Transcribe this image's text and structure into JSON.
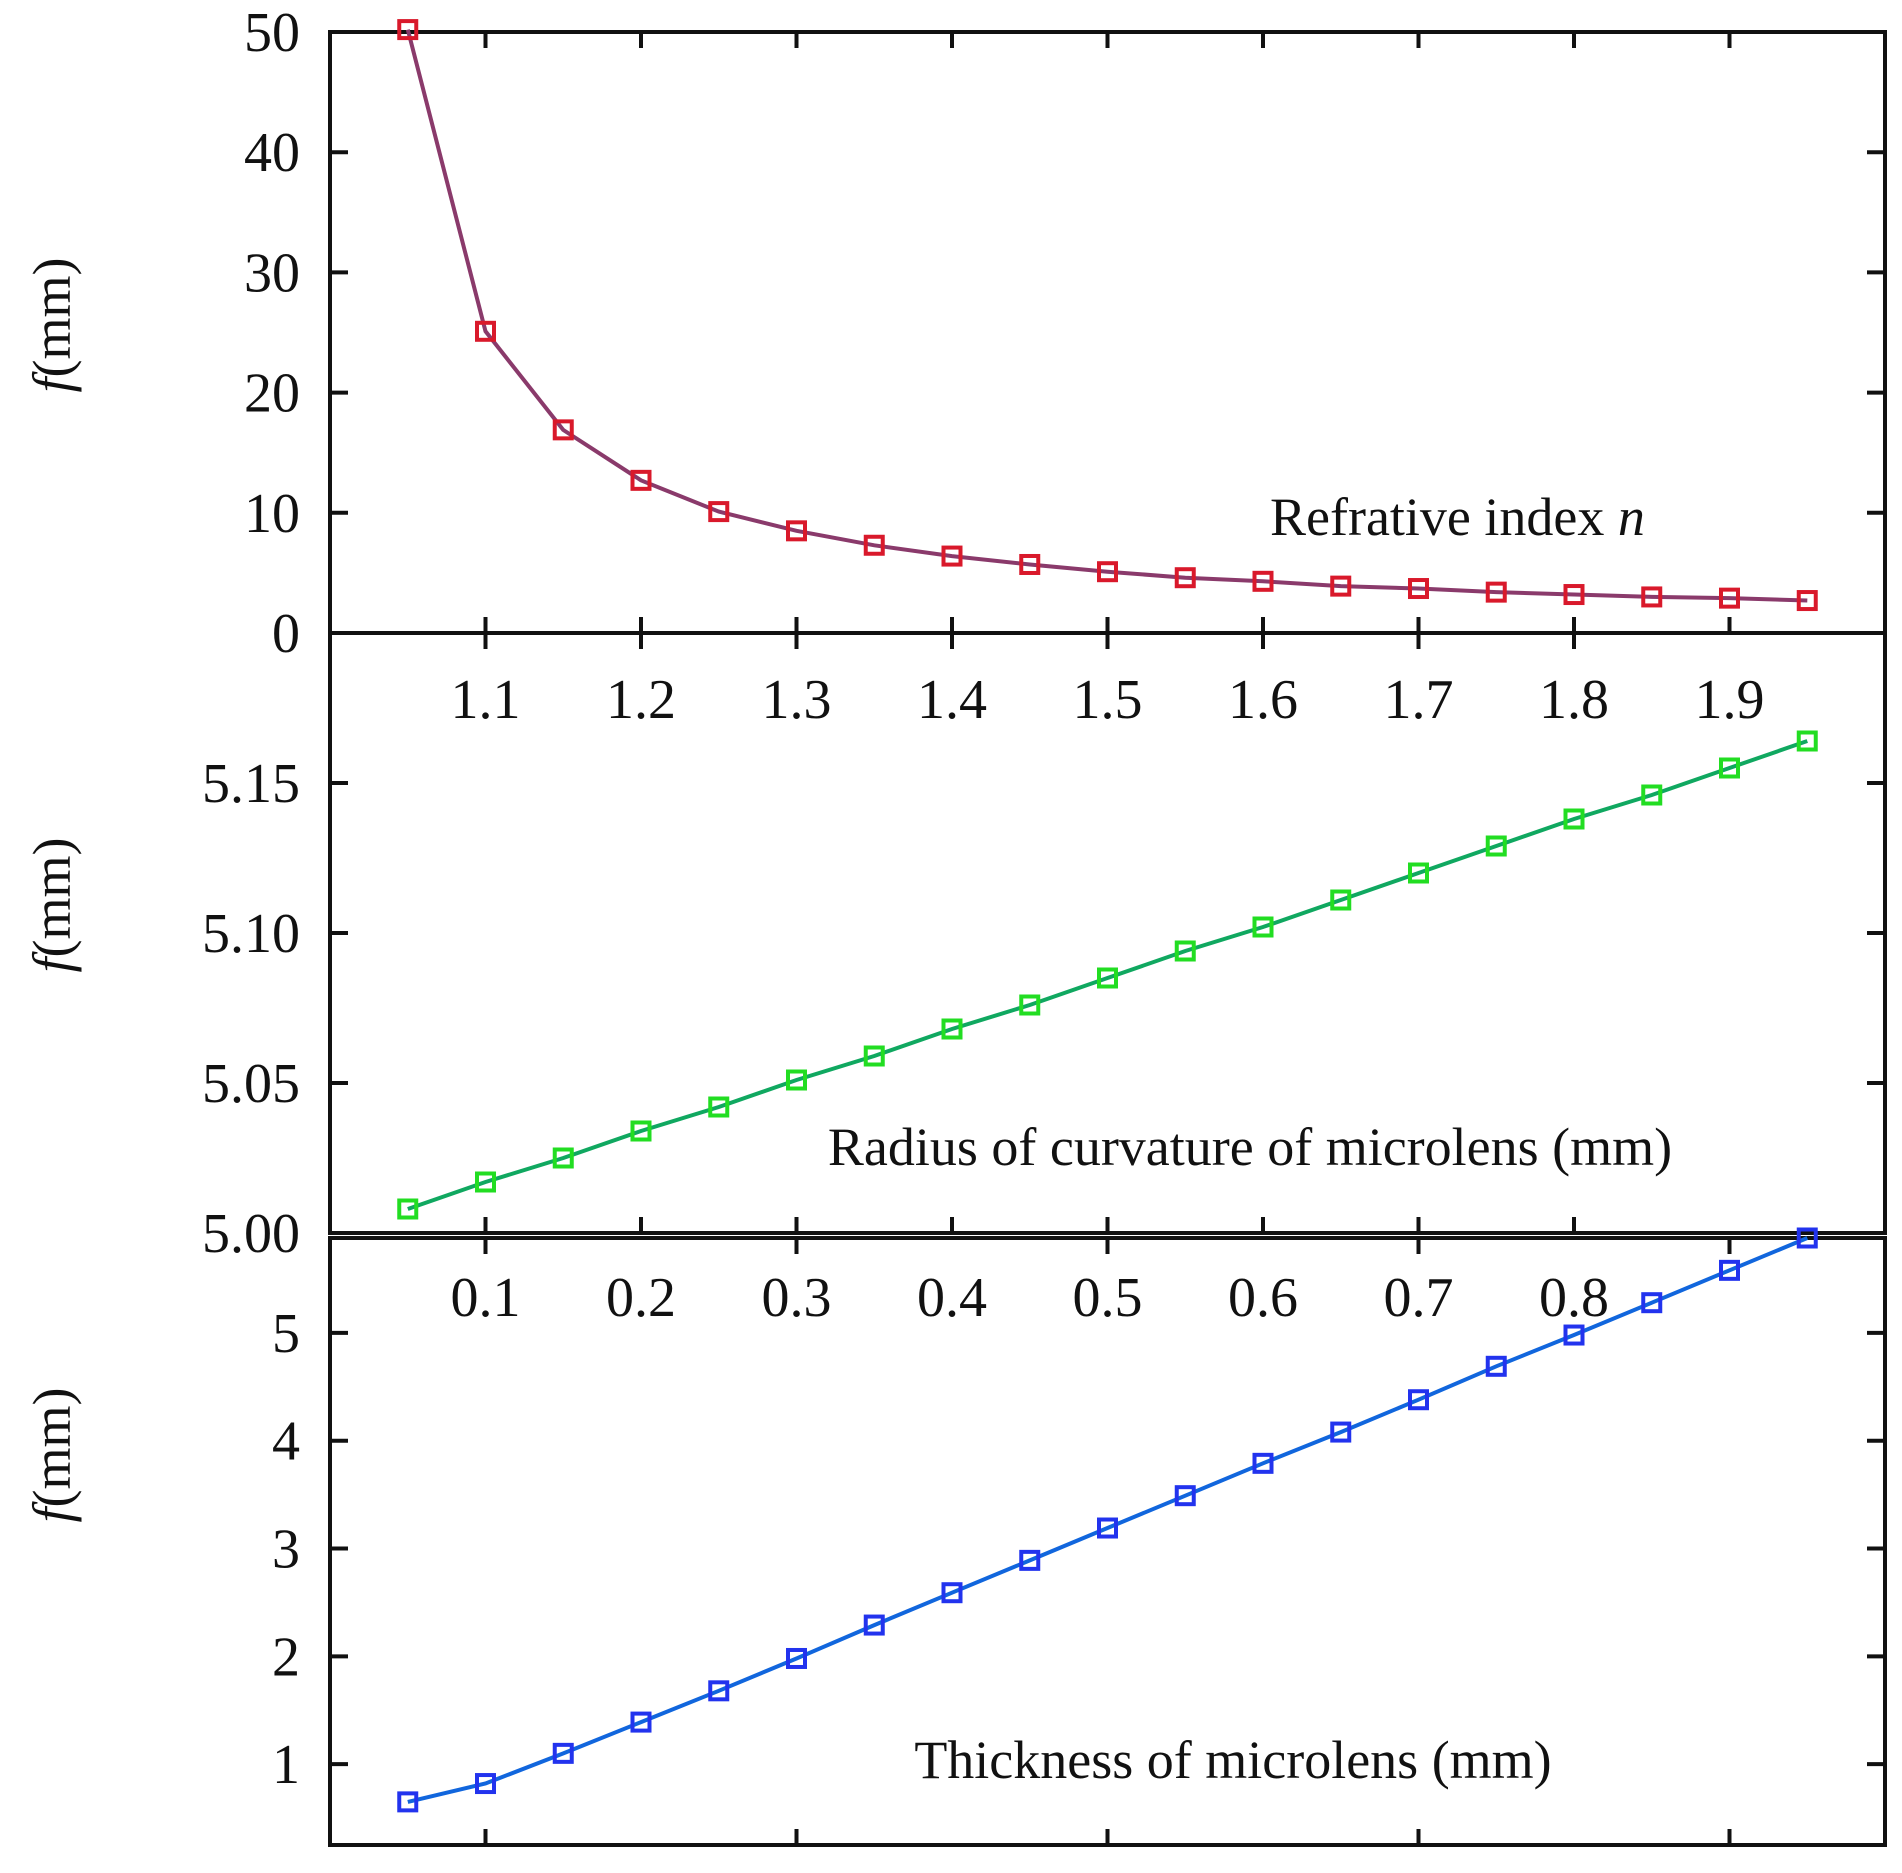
{
  "chart_data": [
    {
      "type": "line",
      "panel": "top",
      "ylabel": "f(mm)",
      "ylabel_italic": "f",
      "ylabel_rest": "(mm)",
      "annotation": "Refrative index n",
      "annotation_text": "Refrative index ",
      "annotation_italic": "n",
      "ylim": [
        0,
        50
      ],
      "yticks": [
        0,
        10,
        20,
        30,
        40,
        50
      ],
      "ytick_labels": [
        "0",
        "10",
        "20",
        "30",
        "40",
        "50"
      ],
      "xlim": [
        1.0,
        2.0
      ],
      "xticks": [
        1.1,
        1.2,
        1.3,
        1.4,
        1.5,
        1.6,
        1.7,
        1.8,
        1.9
      ],
      "xtick_labels": [
        "1.1",
        "1.2",
        "1.3",
        "1.4",
        "1.5",
        "1.6",
        "1.7",
        "1.8",
        "1.9"
      ],
      "color": "#d9192b",
      "line_color": "#8a3a6b",
      "series": [
        {
          "name": "Refrative index n",
          "x": [
            1.05,
            1.1,
            1.15,
            1.2,
            1.25,
            1.3,
            1.35,
            1.4,
            1.45,
            1.5,
            1.55,
            1.6,
            1.65,
            1.7,
            1.75,
            1.8,
            1.85,
            1.9,
            1.95
          ],
          "y": [
            50.2,
            25.1,
            16.9,
            12.7,
            10.1,
            8.5,
            7.3,
            6.4,
            5.7,
            5.1,
            4.6,
            4.3,
            3.9,
            3.7,
            3.4,
            3.2,
            3.0,
            2.9,
            2.7
          ]
        }
      ]
    },
    {
      "type": "line",
      "panel": "middle",
      "ylabel": "f(mm)",
      "ylabel_italic": "f",
      "ylabel_rest": "(mm)",
      "annotation": "Radius of curvature of microlens (mm)",
      "ylim": [
        5.0,
        5.2
      ],
      "yticks": [
        5.0,
        5.05,
        5.1,
        5.15
      ],
      "ytick_labels": [
        "5.00",
        "5.05",
        "5.10",
        "5.15"
      ],
      "xlim": [
        0.0,
        1.0
      ],
      "xticks": [
        0.1,
        0.2,
        0.3,
        0.4,
        0.5,
        0.6,
        0.7,
        0.8
      ],
      "xtick_labels": [
        "0.1",
        "0.2",
        "0.3",
        "0.4",
        "0.5",
        "0.6",
        "0.7",
        "0.8"
      ],
      "color": "#22dd22",
      "line_color": "#10a860",
      "series": [
        {
          "name": "Radius of curvature of microlens (mm)",
          "x": [
            0.05,
            0.1,
            0.15,
            0.2,
            0.25,
            0.3,
            0.35,
            0.4,
            0.45,
            0.5,
            0.55,
            0.6,
            0.65,
            0.7,
            0.75,
            0.8,
            0.85,
            0.9,
            0.95
          ],
          "y": [
            5.008,
            5.017,
            5.025,
            5.034,
            5.042,
            5.051,
            5.059,
            5.068,
            5.076,
            5.085,
            5.094,
            5.102,
            5.111,
            5.12,
            5.129,
            5.138,
            5.146,
            5.155,
            5.164
          ]
        }
      ]
    },
    {
      "type": "line",
      "panel": "bottom",
      "ylabel": "f(mm)",
      "ylabel_italic": "f",
      "ylabel_rest": "(mm)",
      "annotation": "Thickness of microlens (mm)",
      "ylim": [
        0.25,
        5.88
      ],
      "yticks": [
        1,
        2,
        3,
        4,
        5
      ],
      "ytick_labels": [
        "1",
        "2",
        "3",
        "4",
        "5"
      ],
      "xlim": [
        0.0,
        1.0
      ],
      "xticks": [
        0.1,
        0.3,
        0.5,
        0.7,
        0.9
      ],
      "xtick_labels": [],
      "color": "#2233ee",
      "line_color": "#1166dd",
      "series": [
        {
          "name": "Thickness of microlens (mm)",
          "x": [
            0.05,
            0.1,
            0.15,
            0.2,
            0.25,
            0.3,
            0.35,
            0.4,
            0.45,
            0.5,
            0.55,
            0.6,
            0.65,
            0.7,
            0.75,
            0.8,
            0.85,
            0.9,
            0.95
          ],
          "y": [
            0.65,
            0.82,
            1.1,
            1.39,
            1.68,
            1.98,
            2.29,
            2.59,
            2.89,
            3.19,
            3.49,
            3.79,
            4.08,
            4.38,
            4.69,
            4.98,
            5.28,
            5.58,
            5.88
          ]
        }
      ]
    }
  ]
}
